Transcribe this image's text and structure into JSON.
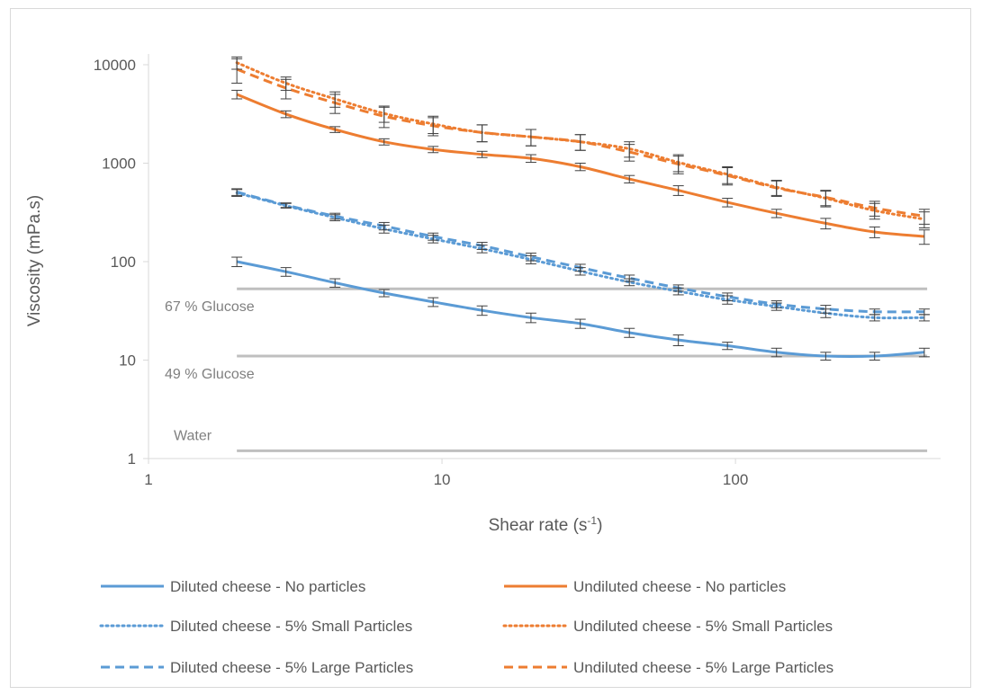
{
  "chart_data": {
    "type": "line",
    "xscale": "log",
    "yscale": "log",
    "xlabel": "Shear rate (s-1)",
    "xlabel_parts": {
      "main": "Shear rate (s",
      "sup": "-1",
      "close": ")"
    },
    "ylabel": "Viscosity (mPa.s)",
    "xlim": [
      1,
      500
    ],
    "ylim": [
      1,
      10000
    ],
    "xticks": [
      {
        "value": 1,
        "label": "1"
      },
      {
        "value": 10,
        "label": "10"
      },
      {
        "value": 100,
        "label": "100"
      }
    ],
    "yticks": [
      {
        "value": 1,
        "label": "1"
      },
      {
        "value": 10,
        "label": "10"
      },
      {
        "value": 100,
        "label": "100"
      },
      {
        "value": 1000,
        "label": "1000"
      },
      {
        "value": 10000,
        "label": "10000"
      }
    ],
    "grid": false,
    "legend_position": "bottom",
    "x": [
      2,
      2.94,
      4.32,
      6.35,
      9.33,
      13.7,
      20.1,
      29.6,
      43.5,
      63.9,
      93.9,
      138,
      203,
      298,
      440
    ],
    "series": [
      {
        "name": "Diluted cheese - No particles",
        "color": "#5b9bd5",
        "dash": "solid",
        "values": [
          100,
          79,
          61,
          48,
          39,
          32,
          27,
          23.5,
          19,
          16,
          14,
          12,
          11,
          11,
          12
        ],
        "err": [
          11,
          8,
          6,
          4,
          4,
          3.5,
          3,
          2.5,
          2,
          2,
          1.2,
          1.2,
          1,
          1,
          1.2
        ]
      },
      {
        "name": "Undiluted cheese - No particles",
        "color": "#ed7d31",
        "dash": "solid",
        "values": [
          5000,
          3150,
          2200,
          1650,
          1380,
          1230,
          1120,
          920,
          690,
          530,
          400,
          310,
          245,
          200,
          180
        ],
        "err": [
          500,
          250,
          150,
          120,
          100,
          90,
          100,
          80,
          60,
          60,
          40,
          30,
          30,
          25,
          30
        ]
      },
      {
        "name": "Diluted cheese - 5% Small Particles",
        "color": "#5b9bd5",
        "dash": "dot",
        "values": [
          500,
          370,
          280,
          215,
          170,
          135,
          105,
          80,
          62,
          50,
          41,
          35,
          30,
          27,
          27
        ],
        "err": [
          40,
          20,
          20,
          20,
          15,
          12,
          10,
          7,
          5,
          4,
          4,
          3,
          3,
          2,
          2
        ]
      },
      {
        "name": "Undiluted cheese - 5% Small Particles",
        "color": "#ed7d31",
        "dash": "dot",
        "values": [
          10500,
          6500,
          4500,
          3200,
          2500,
          2050,
          1850,
          1650,
          1400,
          1020,
          770,
          570,
          440,
          330,
          270
        ],
        "err": [
          1500,
          1000,
          800,
          600,
          500,
          400,
          350,
          300,
          250,
          200,
          150,
          100,
          80,
          60,
          50
        ]
      },
      {
        "name": "Diluted cheese - 5% Large Particles",
        "color": "#5b9bd5",
        "dash": "dash",
        "values": [
          510,
          375,
          290,
          230,
          180,
          145,
          112,
          87,
          68,
          54,
          44,
          37,
          33,
          31,
          31
        ],
        "err": [
          40,
          20,
          20,
          20,
          15,
          12,
          10,
          7,
          5,
          4,
          4,
          3,
          3,
          2,
          2
        ]
      },
      {
        "name": "Undiluted cheese - 5% Large Particles",
        "color": "#ed7d31",
        "dash": "dash",
        "values": [
          9000,
          5800,
          4100,
          3000,
          2400,
          2050,
          1850,
          1650,
          1300,
          980,
          750,
          560,
          450,
          350,
          290
        ],
        "err": [
          2500,
          1300,
          900,
          700,
          500,
          400,
          350,
          300,
          250,
          200,
          150,
          100,
          80,
          60,
          50
        ]
      }
    ],
    "reference_lines": [
      {
        "label": "67 % Glucose",
        "value": 53,
        "x_start": 2,
        "x_end": 450,
        "color": "#bfbfbf"
      },
      {
        "label": "49 % Glucose",
        "value": 11,
        "x_start": 2,
        "x_end": 450,
        "color": "#bfbfbf"
      },
      {
        "label": "Water",
        "value": 1.2,
        "x_start": 2,
        "x_end": 450,
        "color": "#bfbfbf"
      }
    ]
  }
}
